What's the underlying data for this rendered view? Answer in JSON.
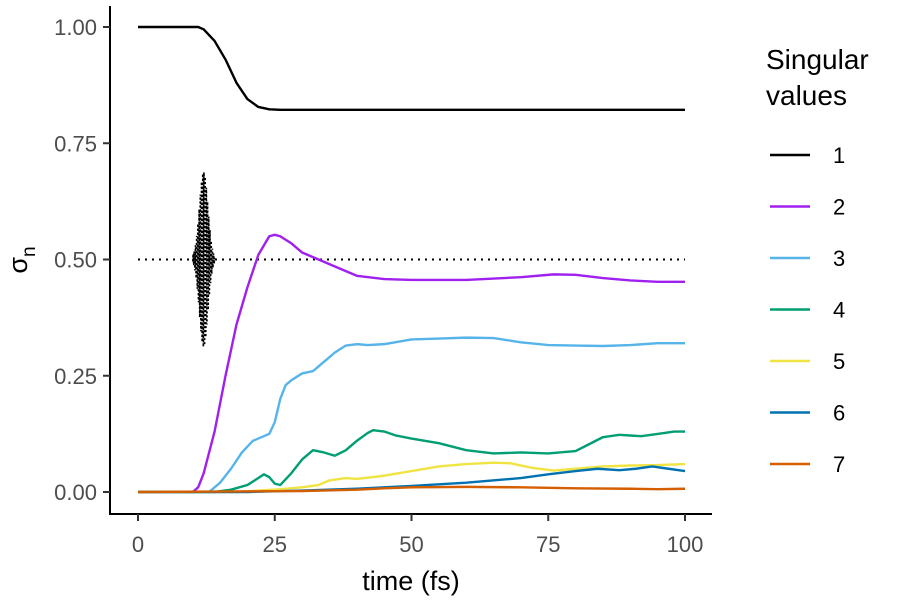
{
  "chart_data": {
    "type": "line",
    "xlabel": "time (fs)",
    "ylabel": "σ",
    "ylabel_sub": "n",
    "xlim": [
      0,
      100
    ],
    "ylim": [
      0,
      1
    ],
    "x_ticks": [
      0,
      25,
      50,
      75,
      100
    ],
    "x_tick_labels": [
      "0",
      "25",
      "50",
      "75",
      "100"
    ],
    "y_ticks": [
      0,
      0.25,
      0.5,
      0.75,
      1.0
    ],
    "y_tick_labels": [
      "0.00",
      "0.25",
      "0.50",
      "0.75",
      "1.00"
    ],
    "grid": false,
    "legend": {
      "title_line1": "Singular",
      "title_line2": "values",
      "position": "right"
    },
    "reference_line": {
      "y": 0.5,
      "style": "dotted",
      "x_range": [
        0,
        100
      ]
    },
    "pulse": {
      "center_x": 12,
      "half_width_x": 2,
      "center_y": 0.5,
      "amplitude": 0.19,
      "style": "dotted"
    },
    "series": [
      {
        "name": "1",
        "color": "#000000",
        "points": [
          [
            0,
            1.0
          ],
          [
            11,
            1.0
          ],
          [
            12,
            0.995
          ],
          [
            14,
            0.97
          ],
          [
            16,
            0.93
          ],
          [
            18,
            0.88
          ],
          [
            20,
            0.845
          ],
          [
            22,
            0.828
          ],
          [
            24,
            0.823
          ],
          [
            26,
            0.822
          ],
          [
            100,
            0.822
          ]
        ]
      },
      {
        "name": "2",
        "color": "#a020f0",
        "points": [
          [
            0,
            0.0
          ],
          [
            10,
            0.0
          ],
          [
            11,
            0.01
          ],
          [
            12,
            0.04
          ],
          [
            14,
            0.13
          ],
          [
            16,
            0.25
          ],
          [
            18,
            0.36
          ],
          [
            20,
            0.44
          ],
          [
            22,
            0.51
          ],
          [
            24,
            0.55
          ],
          [
            25,
            0.553
          ],
          [
            26,
            0.55
          ],
          [
            28,
            0.535
          ],
          [
            30,
            0.515
          ],
          [
            33,
            0.5
          ],
          [
            36,
            0.485
          ],
          [
            40,
            0.465
          ],
          [
            45,
            0.458
          ],
          [
            50,
            0.456
          ],
          [
            60,
            0.456
          ],
          [
            70,
            0.462
          ],
          [
            76,
            0.468
          ],
          [
            80,
            0.467
          ],
          [
            85,
            0.46
          ],
          [
            90,
            0.455
          ],
          [
            95,
            0.452
          ],
          [
            100,
            0.452
          ]
        ]
      },
      {
        "name": "3",
        "color": "#56b4e9",
        "points": [
          [
            0,
            0.0
          ],
          [
            13,
            0.0
          ],
          [
            15,
            0.02
          ],
          [
            17,
            0.05
          ],
          [
            19,
            0.085
          ],
          [
            21,
            0.11
          ],
          [
            23,
            0.12
          ],
          [
            24,
            0.125
          ],
          [
            25,
            0.15
          ],
          [
            26,
            0.2
          ],
          [
            27,
            0.23
          ],
          [
            28,
            0.24
          ],
          [
            30,
            0.255
          ],
          [
            32,
            0.26
          ],
          [
            34,
            0.28
          ],
          [
            36,
            0.3
          ],
          [
            38,
            0.315
          ],
          [
            40,
            0.318
          ],
          [
            42,
            0.316
          ],
          [
            45,
            0.318
          ],
          [
            50,
            0.328
          ],
          [
            55,
            0.33
          ],
          [
            60,
            0.332
          ],
          [
            65,
            0.331
          ],
          [
            70,
            0.322
          ],
          [
            75,
            0.316
          ],
          [
            80,
            0.315
          ],
          [
            85,
            0.314
          ],
          [
            90,
            0.316
          ],
          [
            95,
            0.32
          ],
          [
            100,
            0.32
          ]
        ]
      },
      {
        "name": "4",
        "color": "#009e73",
        "points": [
          [
            0,
            0.0
          ],
          [
            14,
            0.0
          ],
          [
            17,
            0.005
          ],
          [
            20,
            0.015
          ],
          [
            22,
            0.03
          ],
          [
            23,
            0.038
          ],
          [
            24,
            0.032
          ],
          [
            25,
            0.018
          ],
          [
            26,
            0.015
          ],
          [
            28,
            0.04
          ],
          [
            30,
            0.07
          ],
          [
            32,
            0.09
          ],
          [
            34,
            0.085
          ],
          [
            36,
            0.078
          ],
          [
            38,
            0.09
          ],
          [
            40,
            0.11
          ],
          [
            42,
            0.127
          ],
          [
            43,
            0.133
          ],
          [
            45,
            0.13
          ],
          [
            47,
            0.122
          ],
          [
            50,
            0.115
          ],
          [
            55,
            0.105
          ],
          [
            60,
            0.09
          ],
          [
            65,
            0.083
          ],
          [
            70,
            0.085
          ],
          [
            75,
            0.083
          ],
          [
            80,
            0.088
          ],
          [
            82,
            0.1
          ],
          [
            85,
            0.118
          ],
          [
            88,
            0.123
          ],
          [
            92,
            0.12
          ],
          [
            95,
            0.125
          ],
          [
            98,
            0.13
          ],
          [
            100,
            0.13
          ]
        ]
      },
      {
        "name": "5",
        "color": "#f0e442",
        "points": [
          [
            0,
            0.0
          ],
          [
            18,
            0.0
          ],
          [
            22,
            0.003
          ],
          [
            26,
            0.006
          ],
          [
            30,
            0.01
          ],
          [
            33,
            0.015
          ],
          [
            35,
            0.025
          ],
          [
            38,
            0.03
          ],
          [
            40,
            0.028
          ],
          [
            45,
            0.035
          ],
          [
            50,
            0.045
          ],
          [
            55,
            0.055
          ],
          [
            60,
            0.06
          ],
          [
            65,
            0.063
          ],
          [
            68,
            0.062
          ],
          [
            72,
            0.052
          ],
          [
            76,
            0.046
          ],
          [
            80,
            0.05
          ],
          [
            85,
            0.055
          ],
          [
            90,
            0.057
          ],
          [
            95,
            0.058
          ],
          [
            100,
            0.06
          ]
        ]
      },
      {
        "name": "6",
        "color": "#0072b2",
        "points": [
          [
            0,
            0.0
          ],
          [
            20,
            0.0
          ],
          [
            30,
            0.003
          ],
          [
            40,
            0.007
          ],
          [
            50,
            0.013
          ],
          [
            60,
            0.02
          ],
          [
            70,
            0.03
          ],
          [
            75,
            0.038
          ],
          [
            80,
            0.045
          ],
          [
            84,
            0.05
          ],
          [
            88,
            0.047
          ],
          [
            91,
            0.05
          ],
          [
            94,
            0.055
          ],
          [
            97,
            0.05
          ],
          [
            100,
            0.045
          ]
        ]
      },
      {
        "name": "7",
        "color": "#d55e00",
        "points": [
          [
            0,
            0.0
          ],
          [
            30,
            0.002
          ],
          [
            40,
            0.005
          ],
          [
            45,
            0.008
          ],
          [
            50,
            0.01
          ],
          [
            60,
            0.011
          ],
          [
            70,
            0.01
          ],
          [
            80,
            0.008
          ],
          [
            90,
            0.007
          ],
          [
            95,
            0.006
          ],
          [
            100,
            0.007
          ]
        ]
      }
    ]
  }
}
